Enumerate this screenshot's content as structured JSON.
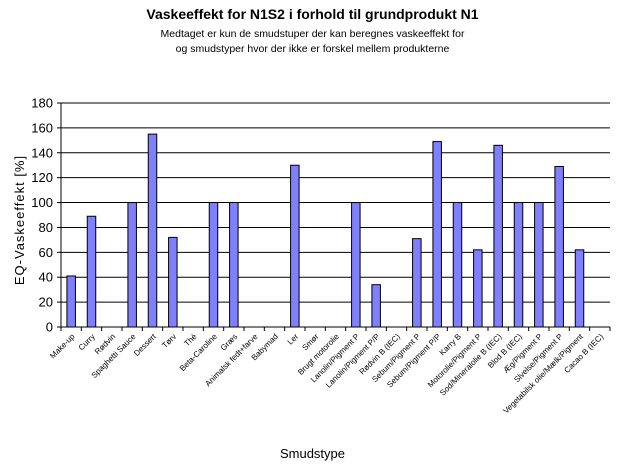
{
  "chart_data": {
    "type": "bar",
    "title": "Vaskeeffekt for N1S2 i forhold til grundprodukt N1",
    "subtitle": [
      "Medtaget er kun de smudstuper der kan beregnes vaskeeffekt for",
      "og smudstyper hvor der ikke er forskel mellem produkterne"
    ],
    "xlabel": "Smudstype",
    "ylabel": "EQ-Vaskeeffekt [%]",
    "ylim": [
      0,
      180
    ],
    "yticks": [
      "0",
      "20",
      "40",
      "60",
      "80",
      "100",
      "120",
      "140",
      "160",
      "180"
    ],
    "grid": true,
    "legend": "none",
    "bar_color": "#8080ff",
    "categories": [
      "Make-up",
      "Curry",
      "Rødvin",
      "Spaghetti Sauce",
      "Dessert",
      "Tørv",
      "Thé",
      "Beta-Caroline",
      "Græs",
      "Animalsk fedt+farve",
      "Babymad",
      "Ler",
      "Smør",
      "Brugt motorolie",
      "Lanolin/Pigment P",
      "Lanolin/Pigment P/P",
      "Rødvin B (IEC)",
      "Sebum/Pigment P",
      "Sebum/Pigment P/P",
      "Karry B",
      "Motorolie/Pigment P",
      "Sod/Mineralolie B (IEC)",
      "Blod B (IEC)",
      "Æg/Pigment P",
      "Slvelse/Pigment P",
      "Vegetabilsk olie/Mælk/Pigment",
      "Cacao B (IEC)"
    ],
    "values": [
      41,
      89,
      null,
      100,
      155,
      72,
      null,
      100,
      100,
      null,
      null,
      130,
      null,
      null,
      100,
      34,
      null,
      71,
      149,
      100,
      62,
      146,
      100,
      100,
      129,
      62,
      null
    ]
  }
}
